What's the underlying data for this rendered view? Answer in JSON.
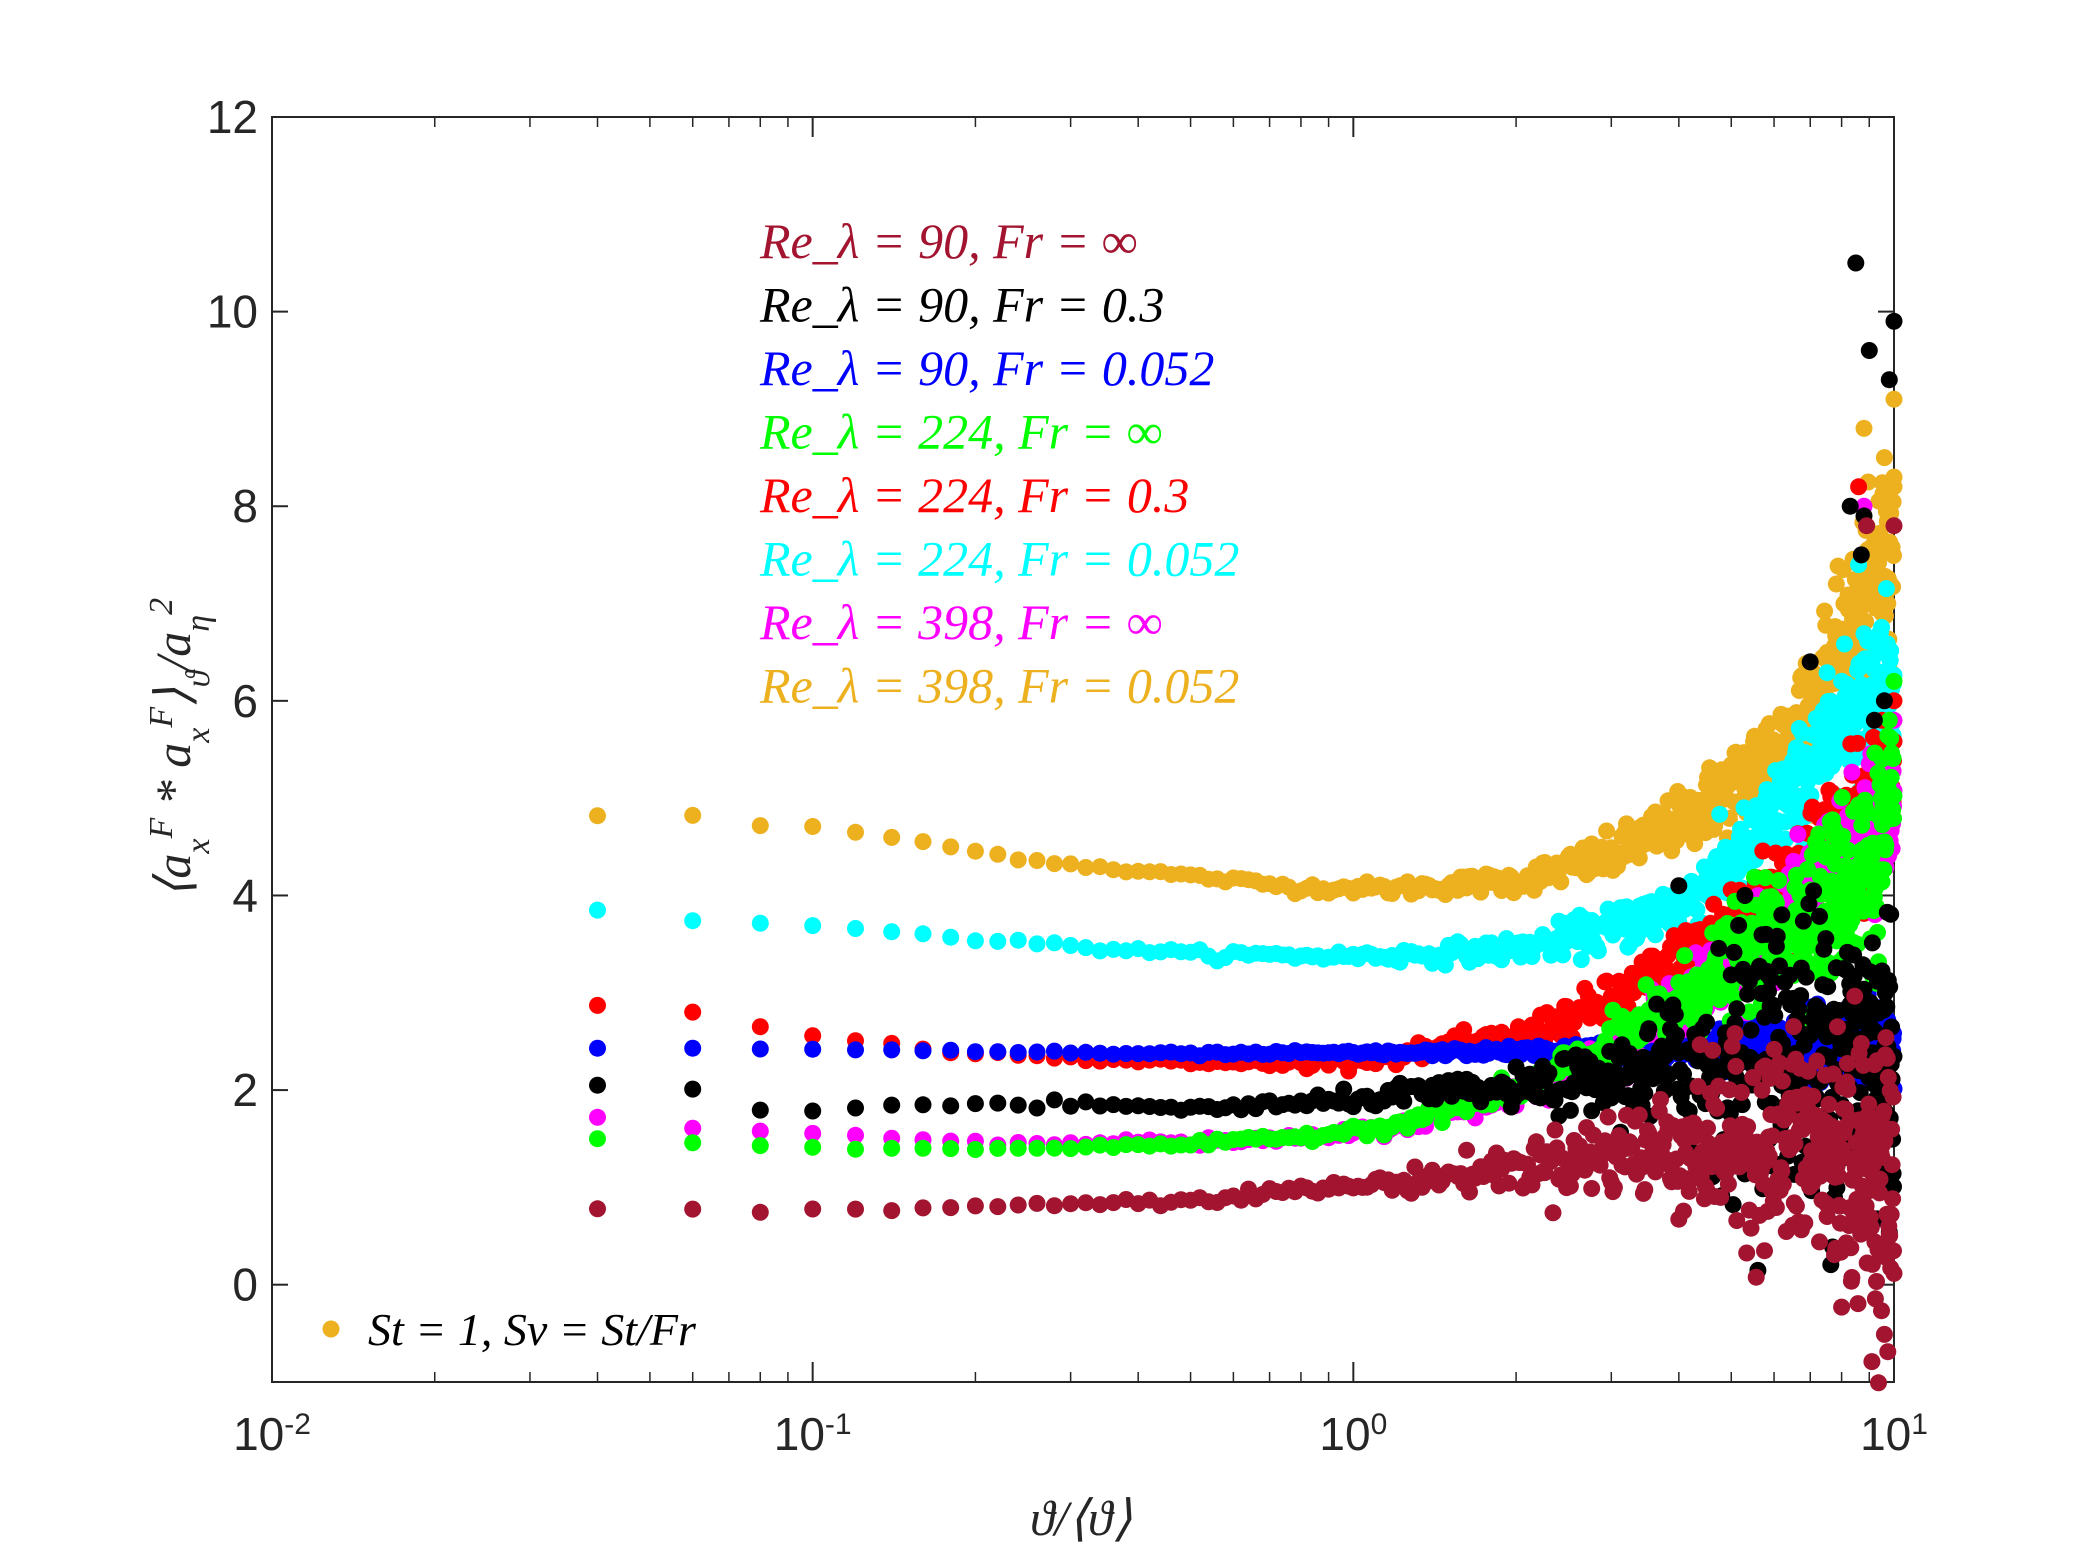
{
  "chart_data": {
    "type": "scatter",
    "xscale": "log",
    "xlim": [
      0.01,
      10
    ],
    "ylim": [
      -1,
      12
    ],
    "xlabel": "ϑ/⟨ϑ⟩",
    "ylabel": "⟨a_x^F * a_x^F⟩_ϑ/a_η^2",
    "xticks": [
      {
        "base": "10",
        "exp": "-2",
        "value": 0.01
      },
      {
        "base": "10",
        "exp": "-1",
        "value": 0.1
      },
      {
        "base": "10",
        "exp": "0",
        "value": 1
      },
      {
        "base": "10",
        "exp": "1",
        "value": 10
      }
    ],
    "yticks": [
      "0",
      "2",
      "4",
      "6",
      "8",
      "10",
      "12"
    ],
    "grid": false,
    "legend_placement": "bottom-left",
    "marker_legend": "St = 1, Sv = St/Fr",
    "series": [
      {
        "name": "Re_λ = 90, Fr = ∞",
        "color": "#A2142F",
        "anchors": [
          [
            0.04,
            0.78
          ],
          [
            0.06,
            0.78
          ],
          [
            0.08,
            0.75
          ],
          [
            0.1,
            0.77
          ],
          [
            0.15,
            0.78
          ],
          [
            0.2,
            0.8
          ],
          [
            0.3,
            0.83
          ],
          [
            0.5,
            0.88
          ],
          [
            0.8,
            0.97
          ],
          [
            1.2,
            1.05
          ],
          [
            2,
            1.2
          ],
          [
            3,
            1.35
          ],
          [
            4,
            1.4
          ],
          [
            5,
            1.45
          ],
          [
            7,
            1.4
          ],
          [
            8,
            1.3
          ],
          [
            10,
            1.0
          ]
        ],
        "spread": [
          [
            0.04,
            0
          ],
          [
            0.25,
            0.02
          ],
          [
            1,
            0.06
          ],
          [
            2,
            0.18
          ],
          [
            3.5,
            0.45
          ],
          [
            6,
            0.9
          ],
          [
            10,
            1.2
          ]
        ],
        "extras": [
          [
            8.9,
            7.8
          ],
          [
            10,
            7.8
          ],
          [
            9.5,
            0.4
          ]
        ]
      },
      {
        "name": "Re_λ = 90, Fr = 0.3",
        "color": "#000000",
        "anchors": [
          [
            0.04,
            2.05
          ],
          [
            0.06,
            2.01
          ],
          [
            0.08,
            1.8
          ],
          [
            0.1,
            1.8
          ],
          [
            0.15,
            1.84
          ],
          [
            0.2,
            1.85
          ],
          [
            0.3,
            1.84
          ],
          [
            0.5,
            1.82
          ],
          [
            0.8,
            1.85
          ],
          [
            1.2,
            1.95
          ],
          [
            2,
            2.0
          ],
          [
            3,
            2.1
          ],
          [
            5,
            2.3
          ],
          [
            7,
            2.4
          ],
          [
            10,
            2.2
          ]
        ],
        "spread": [
          [
            0.04,
            0
          ],
          [
            0.25,
            0.03
          ],
          [
            1,
            0.07
          ],
          [
            2,
            0.15
          ],
          [
            3,
            0.3
          ],
          [
            5,
            1.0
          ],
          [
            10,
            1.6
          ]
        ],
        "extras": [
          [
            8.5,
            10.5
          ],
          [
            9,
            9.6
          ],
          [
            10,
            9.9
          ],
          [
            9.8,
            9.3
          ],
          [
            8.3,
            8.0
          ],
          [
            8.8,
            7.9
          ],
          [
            8.7,
            7.5
          ],
          [
            7,
            6.4
          ],
          [
            9.2,
            5.8
          ],
          [
            9.6,
            6.0
          ],
          [
            4,
            4.1
          ],
          [
            5.3,
            4.0
          ],
          [
            6.2,
            3.8
          ],
          [
            5.8,
            3.6
          ]
        ]
      },
      {
        "name": "Re_λ = 90, Fr = 0.052",
        "color": "#0000FF",
        "anchors": [
          [
            0.04,
            2.43
          ],
          [
            0.06,
            2.43
          ],
          [
            0.08,
            2.42
          ],
          [
            0.1,
            2.42
          ],
          [
            0.15,
            2.41
          ],
          [
            0.2,
            2.4
          ],
          [
            0.3,
            2.38
          ],
          [
            0.5,
            2.37
          ],
          [
            0.8,
            2.38
          ],
          [
            1.2,
            2.38
          ],
          [
            2,
            2.4
          ],
          [
            3,
            2.4
          ],
          [
            5,
            2.45
          ],
          [
            8,
            2.5
          ],
          [
            10,
            2.5
          ]
        ],
        "spread": [
          [
            0.04,
            0
          ],
          [
            1,
            0.02
          ],
          [
            2,
            0.04
          ],
          [
            3,
            0.08
          ],
          [
            5,
            0.2
          ],
          [
            10,
            0.4
          ]
        ],
        "extras": []
      },
      {
        "name": "Re_λ = 224, Fr = ∞",
        "color": "#00FF00",
        "anchors": [
          [
            0.04,
            1.5
          ],
          [
            0.06,
            1.46
          ],
          [
            0.08,
            1.43
          ],
          [
            0.1,
            1.41
          ],
          [
            0.15,
            1.4
          ],
          [
            0.2,
            1.4
          ],
          [
            0.3,
            1.41
          ],
          [
            0.5,
            1.44
          ],
          [
            0.8,
            1.52
          ],
          [
            1.2,
            1.65
          ],
          [
            1.6,
            1.85
          ],
          [
            2,
            2.0
          ],
          [
            3,
            2.45
          ],
          [
            4,
            2.9
          ],
          [
            5,
            3.3
          ],
          [
            7,
            3.8
          ],
          [
            9,
            4.3
          ],
          [
            10,
            4.6
          ]
        ],
        "spread": [
          [
            0.04,
            0
          ],
          [
            0.5,
            0.02
          ],
          [
            1,
            0.05
          ],
          [
            2,
            0.1
          ],
          [
            3,
            0.2
          ],
          [
            5,
            0.4
          ],
          [
            10,
            0.9
          ]
        ],
        "extras": [
          [
            10,
            6.2
          ],
          [
            9.8,
            5.8
          ],
          [
            9.5,
            5.4
          ]
        ]
      },
      {
        "name": "Re_λ = 224, Fr = 0.3",
        "color": "#FF0000",
        "anchors": [
          [
            0.04,
            2.87
          ],
          [
            0.06,
            2.8
          ],
          [
            0.08,
            2.65
          ],
          [
            0.1,
            2.55
          ],
          [
            0.15,
            2.45
          ],
          [
            0.2,
            2.38
          ],
          [
            0.3,
            2.33
          ],
          [
            0.5,
            2.28
          ],
          [
            0.8,
            2.28
          ],
          [
            1.2,
            2.35
          ],
          [
            2,
            2.55
          ],
          [
            3,
            2.9
          ],
          [
            4,
            3.3
          ],
          [
            5,
            3.7
          ],
          [
            6,
            4.0
          ],
          [
            7,
            4.3
          ],
          [
            8,
            4.6
          ],
          [
            10,
            5.1
          ]
        ],
        "spread": [
          [
            0.04,
            0
          ],
          [
            0.5,
            0.03
          ],
          [
            1,
            0.05
          ],
          [
            2,
            0.1
          ],
          [
            3,
            0.2
          ],
          [
            5,
            0.35
          ],
          [
            10,
            0.7
          ]
        ],
        "extras": [
          [
            8.6,
            8.2
          ],
          [
            9.5,
            5.8
          ],
          [
            10,
            6.0
          ]
        ]
      },
      {
        "name": "Re_λ = 224, Fr = 0.052",
        "color": "#00FFFF",
        "anchors": [
          [
            0.04,
            3.85
          ],
          [
            0.06,
            3.74
          ],
          [
            0.08,
            3.72
          ],
          [
            0.1,
            3.7
          ],
          [
            0.15,
            3.62
          ],
          [
            0.2,
            3.55
          ],
          [
            0.3,
            3.48
          ],
          [
            0.5,
            3.4
          ],
          [
            0.8,
            3.38
          ],
          [
            1.2,
            3.38
          ],
          [
            2,
            3.45
          ],
          [
            3,
            3.65
          ],
          [
            4,
            3.9
          ],
          [
            5,
            4.3
          ],
          [
            6,
            4.8
          ],
          [
            7,
            5.3
          ],
          [
            8,
            5.8
          ],
          [
            10,
            6.4
          ]
        ],
        "spread": [
          [
            0.04,
            0
          ],
          [
            0.5,
            0.03
          ],
          [
            1,
            0.05
          ],
          [
            2,
            0.1
          ],
          [
            4,
            0.25
          ],
          [
            10,
            0.6
          ]
        ],
        "extras": [
          [
            8.6,
            7.4
          ],
          [
            9.3,
            6.6
          ]
        ]
      },
      {
        "name": "Re_λ = 398, Fr = ∞",
        "color": "#FF00FF",
        "anchors": [
          [
            0.04,
            1.72
          ],
          [
            0.06,
            1.61
          ],
          [
            0.08,
            1.58
          ],
          [
            0.1,
            1.55
          ],
          [
            0.15,
            1.5
          ],
          [
            0.2,
            1.48
          ],
          [
            0.3,
            1.46
          ],
          [
            0.5,
            1.46
          ],
          [
            0.8,
            1.5
          ],
          [
            1.2,
            1.62
          ],
          [
            2,
            1.95
          ],
          [
            3,
            2.4
          ],
          [
            5,
            3.3
          ],
          [
            7,
            4.0
          ],
          [
            10,
            4.8
          ]
        ],
        "spread": [
          [
            0.04,
            0
          ],
          [
            1,
            0.04
          ],
          [
            3,
            0.15
          ],
          [
            10,
            0.6
          ]
        ],
        "extras": [
          [
            8.8,
            8.0
          ],
          [
            10,
            5.8
          ]
        ]
      },
      {
        "name": "Re_λ = 398, Fr = 0.052",
        "color": "#EDB120",
        "anchors": [
          [
            0.04,
            4.82
          ],
          [
            0.06,
            4.82
          ],
          [
            0.08,
            4.72
          ],
          [
            0.1,
            4.7
          ],
          [
            0.15,
            4.58
          ],
          [
            0.2,
            4.45
          ],
          [
            0.3,
            4.32
          ],
          [
            0.5,
            4.2
          ],
          [
            0.8,
            4.08
          ],
          [
            1.2,
            4.07
          ],
          [
            2,
            4.15
          ],
          [
            3,
            4.4
          ],
          [
            4,
            4.75
          ],
          [
            5,
            5.1
          ],
          [
            6,
            5.5
          ],
          [
            7,
            5.9
          ],
          [
            8,
            6.5
          ],
          [
            9,
            7.2
          ],
          [
            10,
            7.6
          ]
        ],
        "spread": [
          [
            0.04,
            0
          ],
          [
            0.5,
            0.03
          ],
          [
            1,
            0.05
          ],
          [
            2,
            0.1
          ],
          [
            4,
            0.25
          ],
          [
            10,
            0.7
          ]
        ],
        "extras": [
          [
            8.8,
            8.8
          ],
          [
            10,
            9.1
          ],
          [
            9.6,
            8.5
          ],
          [
            10,
            8.2
          ],
          [
            9.2,
            7.7
          ]
        ]
      }
    ]
  }
}
